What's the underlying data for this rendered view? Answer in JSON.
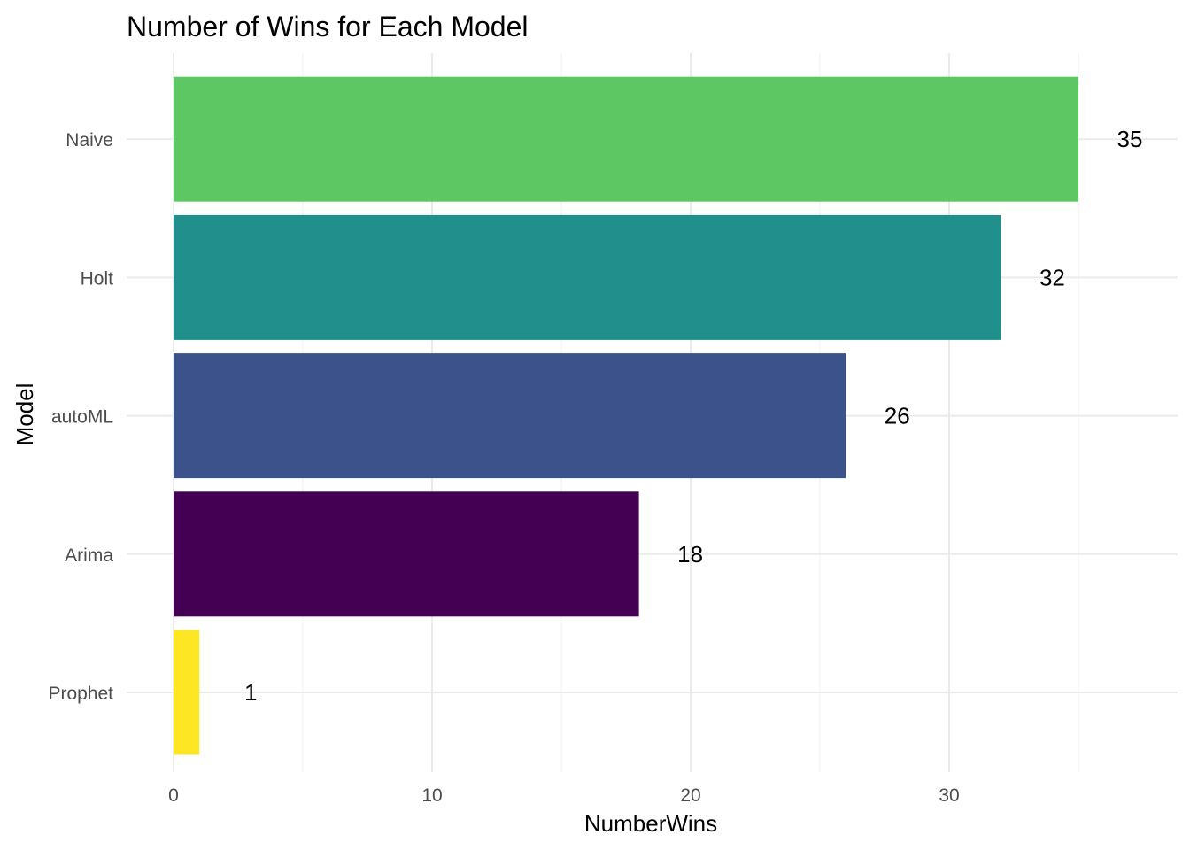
{
  "chart_data": {
    "type": "bar",
    "orientation": "horizontal",
    "title": "Number of Wins for Each Model",
    "xlabel": "NumberWins",
    "ylabel": "Model",
    "categories": [
      "Prophet",
      "Arima",
      "autoML",
      "Holt",
      "Naive"
    ],
    "values": [
      1,
      18,
      26,
      32,
      35
    ],
    "colors": [
      "#FDE725",
      "#440154",
      "#3B528B",
      "#21908C",
      "#5DC863"
    ],
    "data_labels": [
      "1",
      "18",
      "26",
      "32",
      "35"
    ],
    "xlim": [
      0,
      38.8
    ],
    "x_ticks": [
      0,
      10,
      20,
      30
    ],
    "x_tick_labels": [
      "0",
      "10",
      "20",
      "30"
    ],
    "grid": true,
    "legend": "none"
  }
}
